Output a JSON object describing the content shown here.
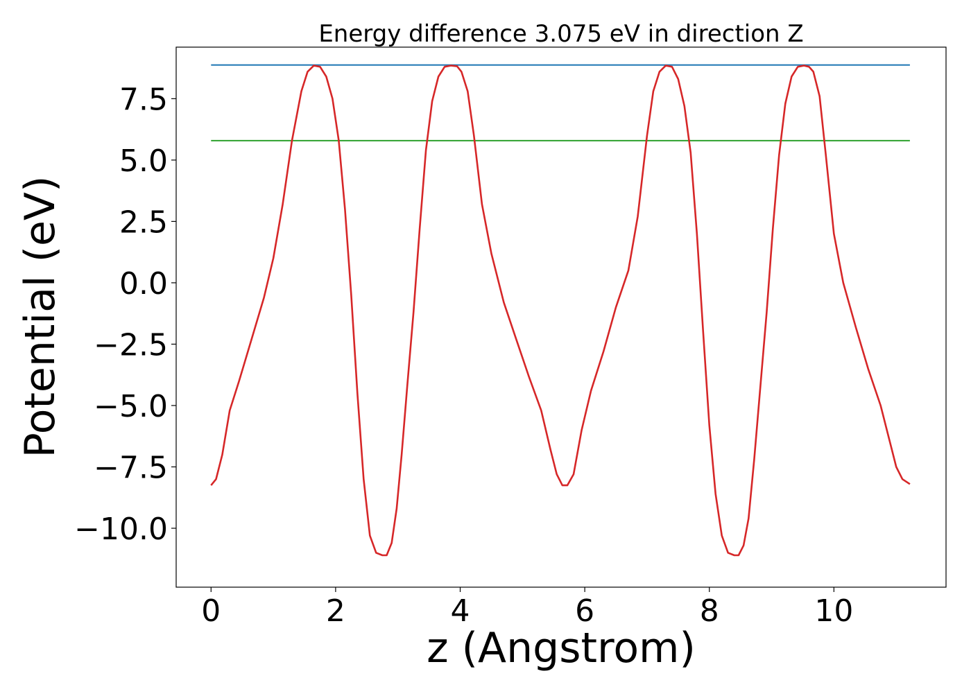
{
  "chart_data": {
    "type": "line",
    "title": "Energy difference 3.075 eV in direction Z",
    "xlabel": "z (Angstrom)",
    "ylabel": "Potential (eV)",
    "xlim": [
      -0.56,
      11.8
    ],
    "ylim": [
      -12.4,
      9.6
    ],
    "xticks": [
      0,
      2,
      4,
      6,
      8,
      10
    ],
    "xtick_labels": [
      "0",
      "2",
      "4",
      "6",
      "8",
      "10"
    ],
    "yticks": [
      -10.0,
      -7.5,
      -5.0,
      -2.5,
      0.0,
      2.5,
      5.0,
      7.5
    ],
    "ytick_labels": [
      "−10.0",
      "−7.5",
      "−5.0",
      "−2.5",
      "0.0",
      "2.5",
      "5.0",
      "7.5"
    ],
    "grid": false,
    "legend": "none",
    "series": [
      {
        "color": "#1f77b4",
        "x": [
          0,
          11.22
        ],
        "y": [
          8.87,
          8.87
        ]
      },
      {
        "color": "#2ca02c",
        "x": [
          0,
          11.22
        ],
        "y": [
          5.79,
          5.79
        ]
      },
      {
        "color": "#d62728",
        "x": [
          0,
          0.08,
          0.18,
          0.3,
          0.45,
          0.65,
          0.85,
          1.0,
          1.15,
          1.3,
          1.45,
          1.55,
          1.65,
          1.75,
          1.85,
          1.95,
          2.05,
          2.15,
          2.25,
          2.35,
          2.45,
          2.55,
          2.65,
          2.75,
          2.82,
          2.9,
          2.98,
          3.06,
          3.15,
          3.25,
          3.35,
          3.45,
          3.55,
          3.65,
          3.75,
          3.85,
          3.95,
          4.02,
          4.12,
          4.22,
          4.35,
          4.5,
          4.7,
          4.9,
          5.1,
          5.3,
          5.45,
          5.55,
          5.64,
          5.72,
          5.82,
          5.95,
          6.1,
          6.3,
          6.5,
          6.7,
          6.85,
          7.0,
          7.1,
          7.2,
          7.3,
          7.4,
          7.5,
          7.6,
          7.7,
          7.8,
          7.9,
          8.0,
          8.1,
          8.2,
          8.3,
          8.4,
          8.47,
          8.55,
          8.63,
          8.72,
          8.82,
          8.92,
          9.02,
          9.12,
          9.22,
          9.32,
          9.42,
          9.52,
          9.6,
          9.67,
          9.77,
          9.87,
          10.0,
          10.15,
          10.35,
          10.55,
          10.75,
          10.9,
          11.0,
          11.1,
          11.22
        ],
        "y": [
          -8.25,
          -8.0,
          -7.0,
          -5.2,
          -4.0,
          -2.3,
          -0.6,
          1.0,
          3.2,
          5.8,
          7.8,
          8.6,
          8.85,
          8.8,
          8.4,
          7.5,
          5.8,
          3.0,
          -0.5,
          -4.5,
          -8.0,
          -10.3,
          -11.0,
          -11.1,
          -11.1,
          -10.6,
          -9.2,
          -7.0,
          -4.2,
          -1.2,
          2.2,
          5.4,
          7.4,
          8.4,
          8.8,
          8.85,
          8.82,
          8.6,
          7.8,
          6.0,
          3.2,
          1.2,
          -0.8,
          -2.3,
          -3.8,
          -5.2,
          -6.8,
          -7.8,
          -8.25,
          -8.25,
          -7.8,
          -6.0,
          -4.4,
          -2.8,
          -1.0,
          0.5,
          2.7,
          6.0,
          7.8,
          8.6,
          8.85,
          8.8,
          8.3,
          7.2,
          5.3,
          2.0,
          -2.0,
          -5.8,
          -8.6,
          -10.3,
          -11.0,
          -11.1,
          -11.1,
          -10.7,
          -9.6,
          -7.2,
          -4.2,
          -1.2,
          2.2,
          5.2,
          7.3,
          8.4,
          8.8,
          8.85,
          8.8,
          8.6,
          7.6,
          5.2,
          2.0,
          0.0,
          -1.8,
          -3.5,
          -5.0,
          -6.5,
          -7.5,
          -8.0,
          -8.2
        ]
      }
    ]
  }
}
